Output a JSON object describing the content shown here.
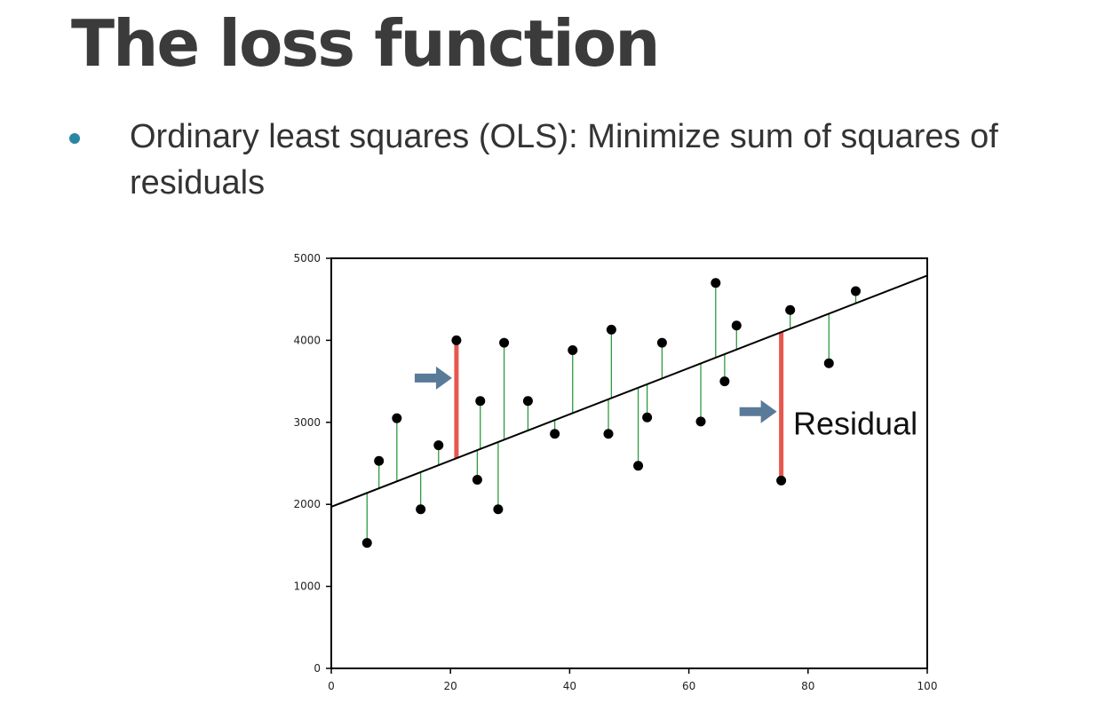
{
  "slide": {
    "title": "The loss function",
    "bullet": "Ordinary least squares (OLS): Minimize sum of squares of residuals"
  },
  "colors": {
    "title": "#3b3b3b",
    "bullet_dot": "#2b86a6",
    "regression_line": "#000000",
    "residual_line": "#2e9a3e",
    "highlight_residual": "#e8574f",
    "arrow": "#5a7a99",
    "point": "#000000"
  },
  "chart_data": {
    "type": "scatter",
    "title": "",
    "xlabel": "",
    "ylabel": "",
    "xlim": [
      0,
      100
    ],
    "ylim": [
      0,
      5000
    ],
    "xticks": [
      "0",
      "20",
      "40",
      "60",
      "80",
      "100"
    ],
    "yticks": [
      "0",
      "1000",
      "2000",
      "3000",
      "4000",
      "5000"
    ],
    "grid": false,
    "regression_line": {
      "intercept": 1970,
      "slope": 28.2
    },
    "points": [
      {
        "x": 6,
        "y": 1530
      },
      {
        "x": 8,
        "y": 2530
      },
      {
        "x": 11,
        "y": 3050
      },
      {
        "x": 15,
        "y": 1940
      },
      {
        "x": 18,
        "y": 2720
      },
      {
        "x": 21,
        "y": 4000
      },
      {
        "x": 24.5,
        "y": 2300
      },
      {
        "x": 25,
        "y": 3260
      },
      {
        "x": 28,
        "y": 1940
      },
      {
        "x": 29,
        "y": 3970
      },
      {
        "x": 33,
        "y": 3260
      },
      {
        "x": 37.5,
        "y": 2860
      },
      {
        "x": 40.5,
        "y": 3880
      },
      {
        "x": 46.5,
        "y": 2860
      },
      {
        "x": 47,
        "y": 4130
      },
      {
        "x": 51.5,
        "y": 2470
      },
      {
        "x": 53,
        "y": 3060
      },
      {
        "x": 55.5,
        "y": 3970
      },
      {
        "x": 62,
        "y": 3010
      },
      {
        "x": 64.5,
        "y": 4700
      },
      {
        "x": 66,
        "y": 3500
      },
      {
        "x": 68,
        "y": 4180
      },
      {
        "x": 75.5,
        "y": 2290
      },
      {
        "x": 77,
        "y": 4370
      },
      {
        "x": 83.5,
        "y": 3720
      },
      {
        "x": 88,
        "y": 4600
      }
    ],
    "highlighted_point_indices": [
      5,
      22
    ],
    "annotations": [
      {
        "text": "Residual",
        "x": 77.5,
        "y": 2980
      }
    ],
    "arrows": [
      {
        "x": 14,
        "y": 3540
      },
      {
        "x": 68.5,
        "y": 3130
      }
    ]
  }
}
